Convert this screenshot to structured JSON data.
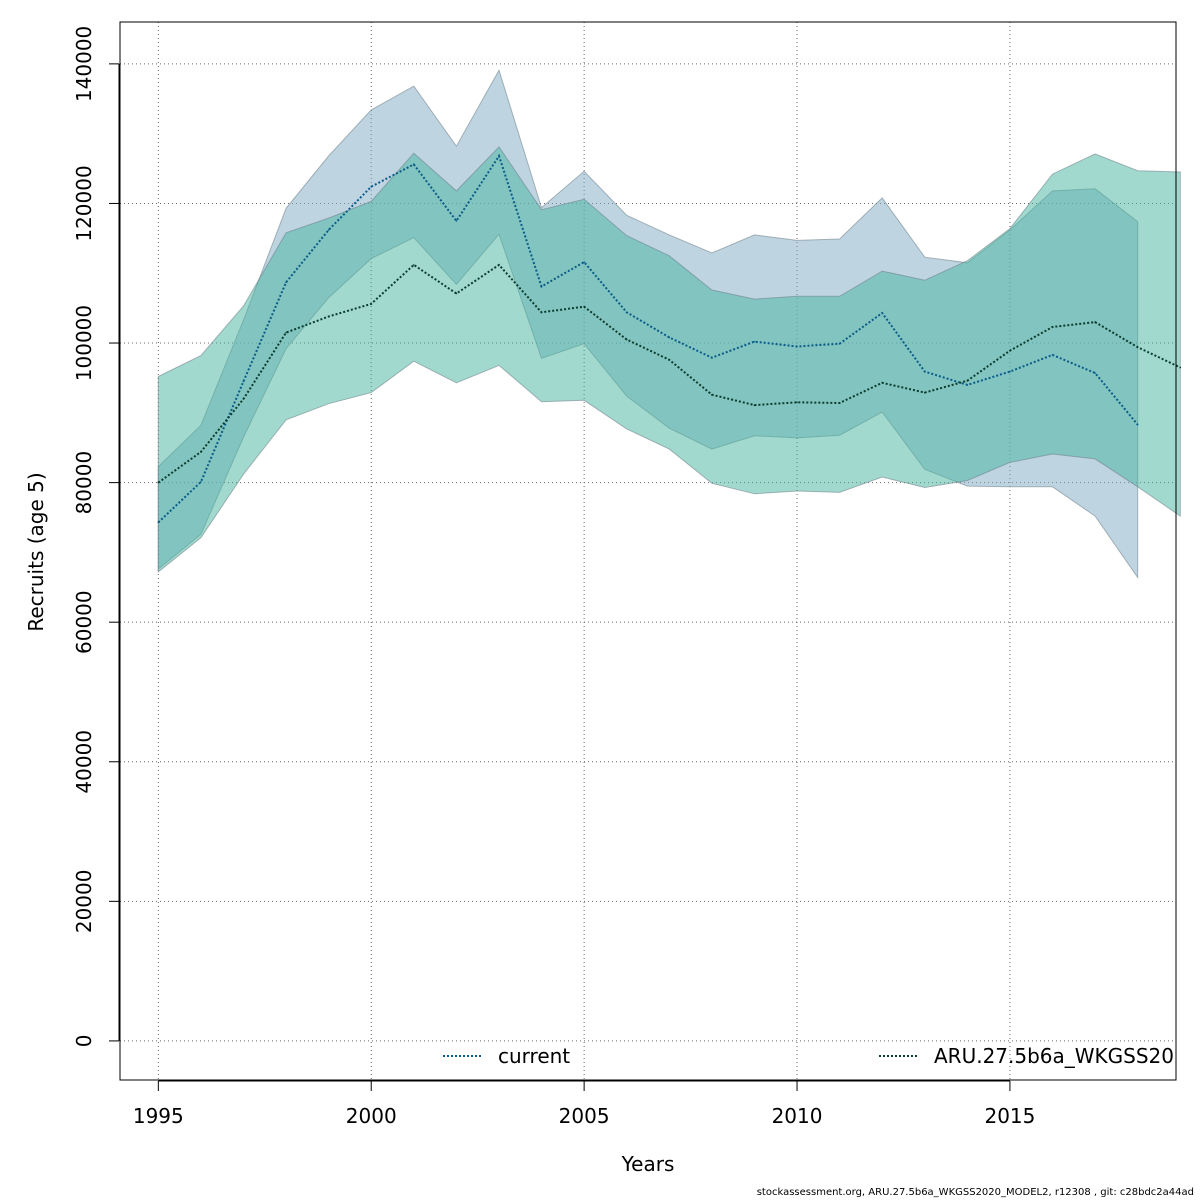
{
  "chart_data": {
    "type": "line",
    "title": "",
    "xlabel": "Years",
    "ylabel": "Recruits (age 5)",
    "xlim": [
      1994.1,
      2018.9
    ],
    "ylim": [
      -5600,
      146000
    ],
    "x_ticks": [
      1995,
      2000,
      2005,
      2010,
      2015
    ],
    "x_tick_labels": [
      "1995",
      "2000",
      "2005",
      "2010",
      "2015"
    ],
    "y_ticks": [
      0,
      20000,
      40000,
      60000,
      80000,
      100000,
      120000,
      140000
    ],
    "y_tick_labels": [
      "0",
      "20000",
      "40000",
      "60000",
      "80000",
      "100000",
      "120000",
      "140000"
    ],
    "grid": true,
    "legend_placement": "bottom",
    "series": [
      {
        "name": "current",
        "color": "#0a5c8a",
        "band_color": "#7fa9c4",
        "x": [
          1995,
          1996,
          1997,
          1998,
          1999,
          2000,
          2001,
          2002,
          2003,
          2004,
          2005,
          2006,
          2007,
          2008,
          2009,
          2010,
          2011,
          2012,
          2013,
          2014,
          2015,
          2016,
          2017,
          2018
        ],
        "values": [
          74300,
          80100,
          94500,
          108700,
          116200,
          122400,
          125600,
          117500,
          126800,
          108100,
          111600,
          104400,
          100800,
          97900,
          100200,
          99500,
          99900,
          104300,
          95900,
          94000,
          95900,
          98300,
          95700,
          88300
        ],
        "low": [
          67600,
          72600,
          86500,
          99200,
          106500,
          112100,
          115100,
          108400,
          115600,
          97800,
          99900,
          92400,
          87800,
          84800,
          86700,
          86400,
          86800,
          90100,
          81900,
          79500,
          79400,
          79400,
          75200,
          66400
        ],
        "high": [
          82300,
          88200,
          103300,
          119300,
          126800,
          133400,
          136800,
          128200,
          139100,
          119400,
          124600,
          118300,
          115500,
          112900,
          115500,
          114700,
          114900,
          120800,
          112300,
          111500,
          116200,
          121800,
          122100,
          117400
        ]
      },
      {
        "name": "ARU.27.5b6a_WKGSS20",
        "color": "#0b3d2e",
        "band_color": "#45b39d",
        "x": [
          1995,
          1996,
          1997,
          1998,
          1999,
          2000,
          2001,
          2002,
          2003,
          2004,
          2005,
          2006,
          2007,
          2008,
          2009,
          2010,
          2011,
          2012,
          2013,
          2014,
          2015,
          2016,
          2017,
          2018,
          2019
        ],
        "values": [
          80000,
          84400,
          92000,
          101500,
          103800,
          105600,
          111200,
          107100,
          111200,
          104400,
          105200,
          100500,
          97600,
          92600,
          91100,
          91500,
          91400,
          94300,
          92900,
          94600,
          98900,
          102300,
          103000,
          99400,
          96500
        ],
        "low": [
          67200,
          72100,
          81200,
          89000,
          91300,
          92900,
          97400,
          94300,
          96800,
          91600,
          91800,
          87700,
          84800,
          79900,
          78400,
          78800,
          78600,
          80800,
          79300,
          80300,
          82900,
          84100,
          83400,
          79400,
          75200
        ],
        "high": [
          95200,
          98200,
          105300,
          115800,
          117900,
          120300,
          127200,
          121800,
          128100,
          119100,
          120600,
          115400,
          112500,
          107600,
          106300,
          106700,
          106700,
          110300,
          109000,
          111800,
          116400,
          124200,
          127100,
          124700,
          124500
        ]
      }
    ]
  },
  "footer": "stockassessment.org, ARU.27.5b6a_WKGSS2020_MODEL2, r12308 , git: c28bdc2a44ad"
}
